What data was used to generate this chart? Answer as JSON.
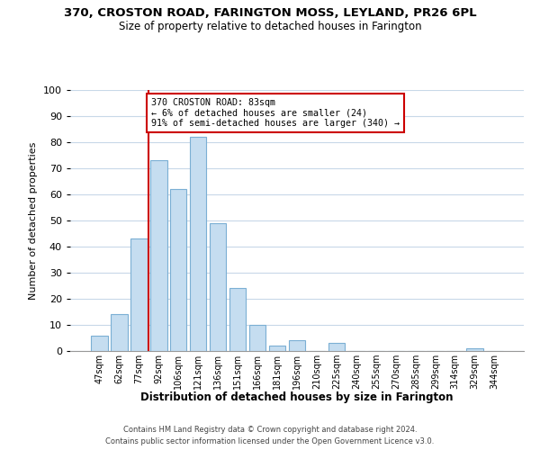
{
  "title": "370, CROSTON ROAD, FARINGTON MOSS, LEYLAND, PR26 6PL",
  "subtitle": "Size of property relative to detached houses in Farington",
  "xlabel": "Distribution of detached houses by size in Farington",
  "ylabel": "Number of detached properties",
  "bar_color": "#c5ddf0",
  "bar_edge_color": "#7bafd4",
  "categories": [
    "47sqm",
    "62sqm",
    "77sqm",
    "92sqm",
    "106sqm",
    "121sqm",
    "136sqm",
    "151sqm",
    "166sqm",
    "181sqm",
    "196sqm",
    "210sqm",
    "225sqm",
    "240sqm",
    "255sqm",
    "270sqm",
    "285sqm",
    "299sqm",
    "314sqm",
    "329sqm",
    "344sqm"
  ],
  "values": [
    6,
    14,
    43,
    73,
    62,
    82,
    49,
    24,
    10,
    2,
    4,
    0,
    3,
    0,
    0,
    0,
    0,
    0,
    0,
    1,
    0
  ],
  "property_line_color": "#cc0000",
  "annotation_text": "370 CROSTON ROAD: 83sqm\n← 6% of detached houses are smaller (24)\n91% of semi-detached houses are larger (340) →",
  "annotation_box_color": "#ffffff",
  "annotation_box_edge": "#cc0000",
  "ylim": [
    0,
    100
  ],
  "footer1": "Contains HM Land Registry data © Crown copyright and database right 2024.",
  "footer2": "Contains public sector information licensed under the Open Government Licence v3.0.",
  "background_color": "#ffffff",
  "grid_color": "#c8d8e8"
}
